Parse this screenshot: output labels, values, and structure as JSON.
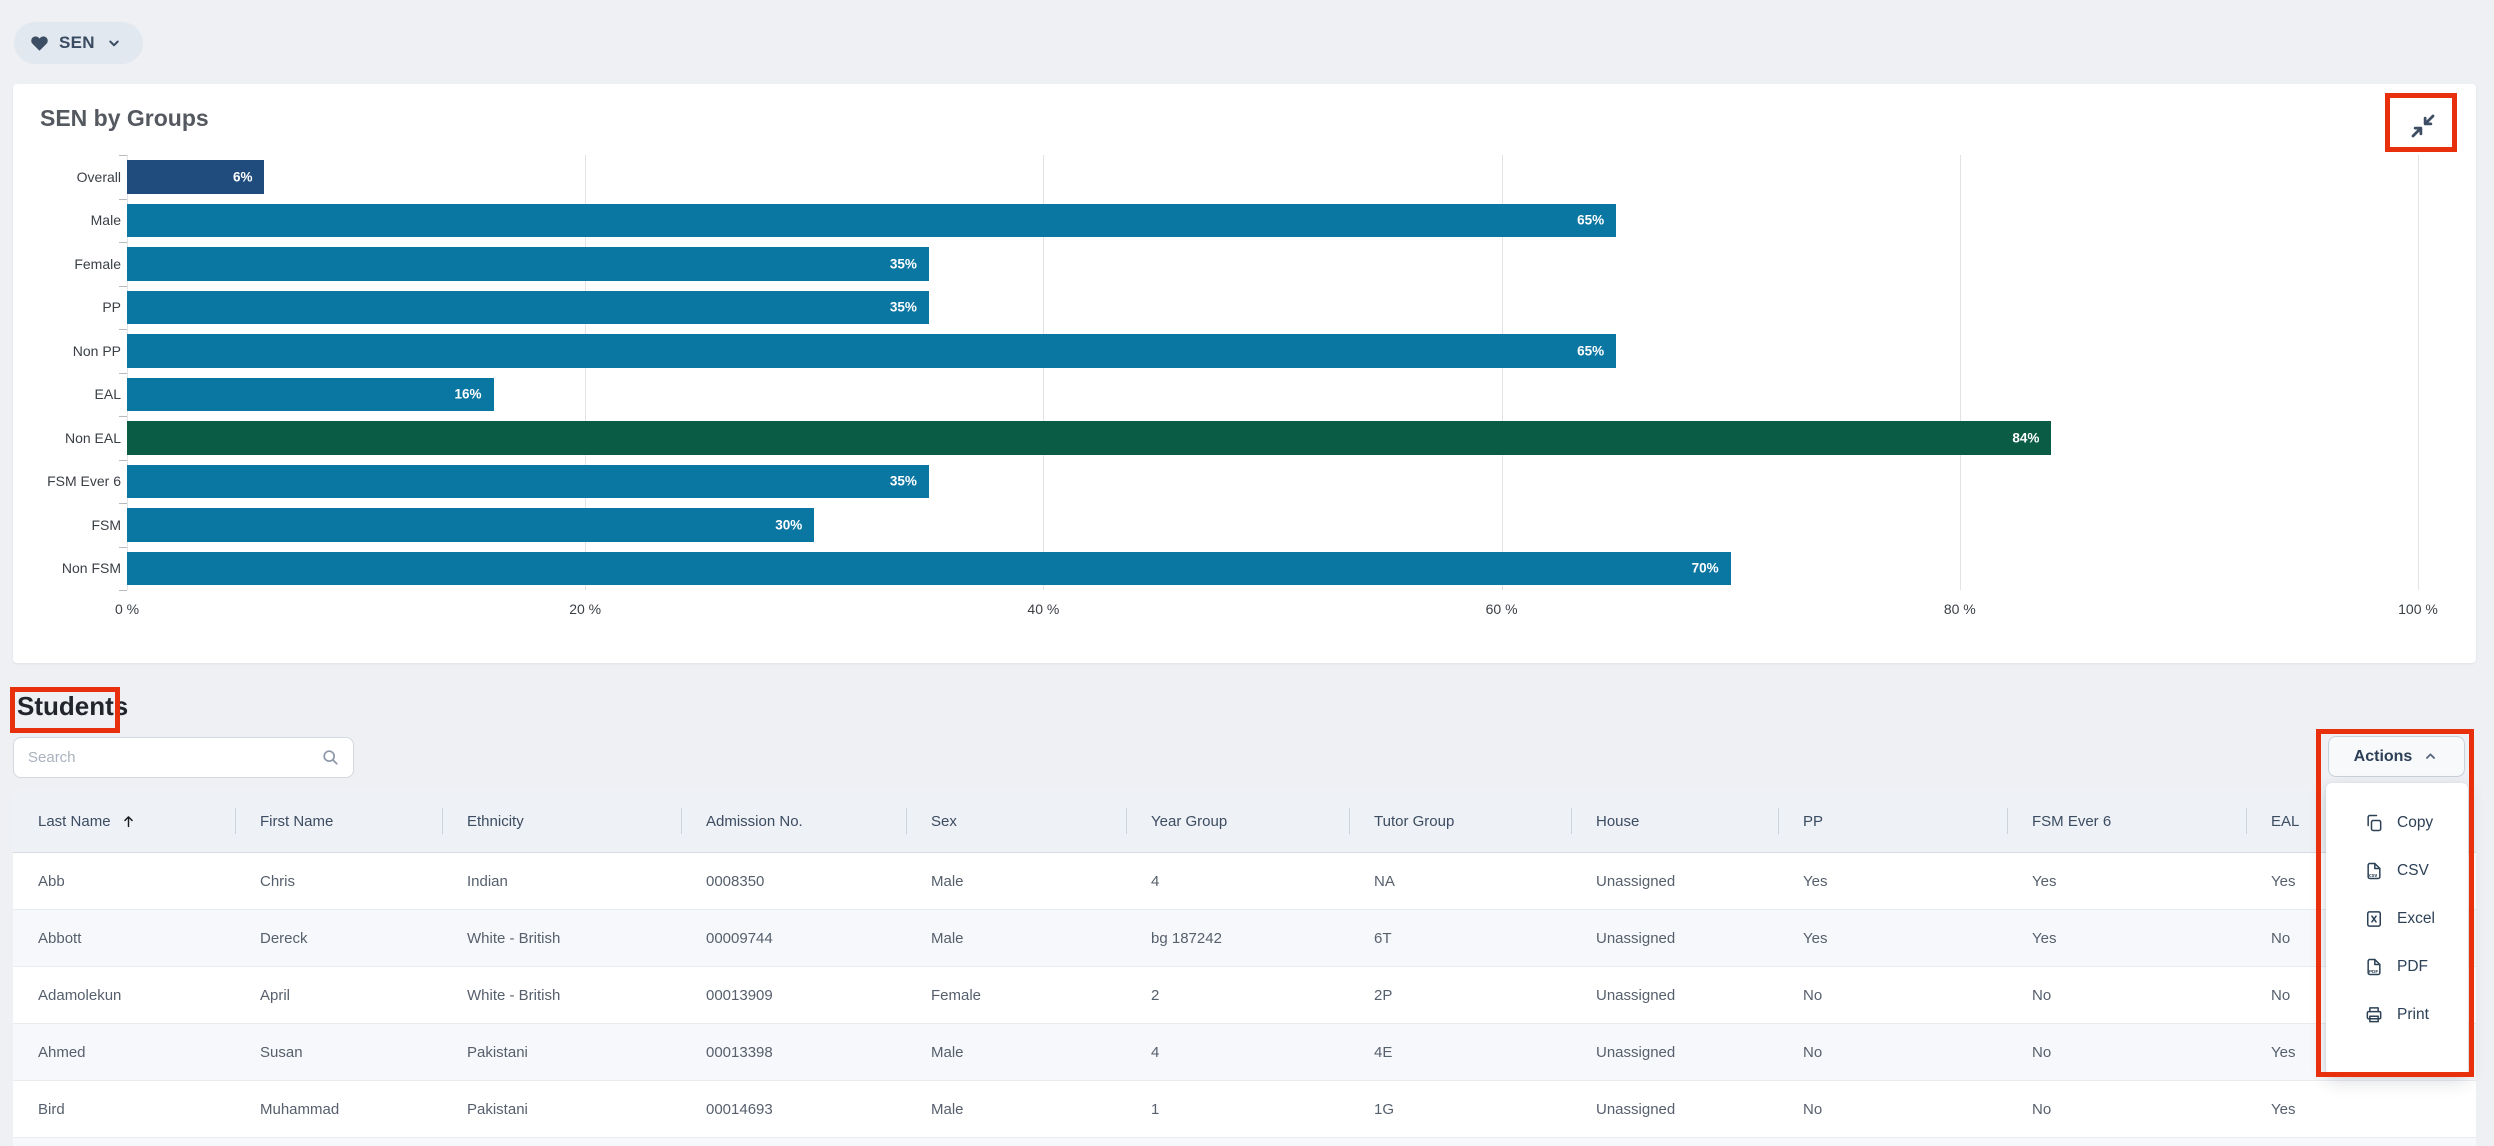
{
  "colors": {
    "annotation": "#e8300c",
    "bar_default": "#0a76a2",
    "bar_overall": "#1f4b7d",
    "bar_non_eal": "#0b5c44"
  },
  "filter_pill": {
    "label": "SEN",
    "icon": "heart-icon"
  },
  "chart_data": {
    "type": "bar",
    "orientation": "horizontal",
    "title": "SEN by Groups",
    "categories": [
      "Overall",
      "Male",
      "Female",
      "PP",
      "Non PP",
      "EAL",
      "Non EAL",
      "FSM Ever 6",
      "FSM",
      "Non FSM"
    ],
    "values": [
      6,
      65,
      35,
      35,
      65,
      16,
      84,
      35,
      30,
      70
    ],
    "value_labels": [
      "6%",
      "65%",
      "35%",
      "35%",
      "65%",
      "16%",
      "84%",
      "35%",
      "30%",
      "70%"
    ],
    "bar_colors": [
      "#1f4b7d",
      "#0a76a2",
      "#0a76a2",
      "#0a76a2",
      "#0a76a2",
      "#0a76a2",
      "#0b5c44",
      "#0a76a2",
      "#0a76a2",
      "#0a76a2"
    ],
    "x_tick_values": [
      0,
      20,
      40,
      60,
      80,
      100
    ],
    "x_tick_labels": [
      "0 %",
      "20 %",
      "40 %",
      "60 %",
      "80 %",
      "100 %"
    ],
    "xlim": [
      0,
      100
    ],
    "grid": "vertical gridlines at 20% steps",
    "legend": "none"
  },
  "students": {
    "heading": "Students",
    "search_placeholder": "Search",
    "search_value": "",
    "actions": {
      "button_label": "Actions",
      "menu_items": [
        {
          "label": "Copy",
          "icon": "copy-icon"
        },
        {
          "label": "CSV",
          "icon": "csv-file-icon"
        },
        {
          "label": "Excel",
          "icon": "excel-file-icon"
        },
        {
          "label": "PDF",
          "icon": "pdf-file-icon"
        },
        {
          "label": "Print",
          "icon": "printer-icon"
        }
      ]
    }
  },
  "table": {
    "columns": [
      "Last Name",
      "First Name",
      "Ethnicity",
      "Admission No.",
      "Sex",
      "Year Group",
      "Tutor Group",
      "House",
      "PP",
      "FSM Ever 6",
      "EAL"
    ],
    "sorted_column": "Last Name",
    "sort_direction": "asc",
    "rows": [
      [
        "Abb",
        "Chris",
        "Indian",
        "0008350",
        "Male",
        "4",
        "NA",
        "Unassigned",
        "Yes",
        "Yes",
        "Yes"
      ],
      [
        "Abbott",
        "Dereck",
        "White - British",
        "00009744",
        "Male",
        "bg 187242",
        "6T",
        "Unassigned",
        "Yes",
        "Yes",
        "No"
      ],
      [
        "Adamolekun",
        "April",
        "White - British",
        "00013909",
        "Female",
        "2",
        "2P",
        "Unassigned",
        "No",
        "No",
        "No"
      ],
      [
        "Ahmed",
        "Susan",
        "Pakistani",
        "00013398",
        "Male",
        "4",
        "4E",
        "Unassigned",
        "No",
        "No",
        "Yes"
      ],
      [
        "Bird",
        "Muhammad",
        "Pakistani",
        "00014693",
        "Male",
        "1",
        "1G",
        "Unassigned",
        "No",
        "No",
        "Yes"
      ]
    ]
  }
}
